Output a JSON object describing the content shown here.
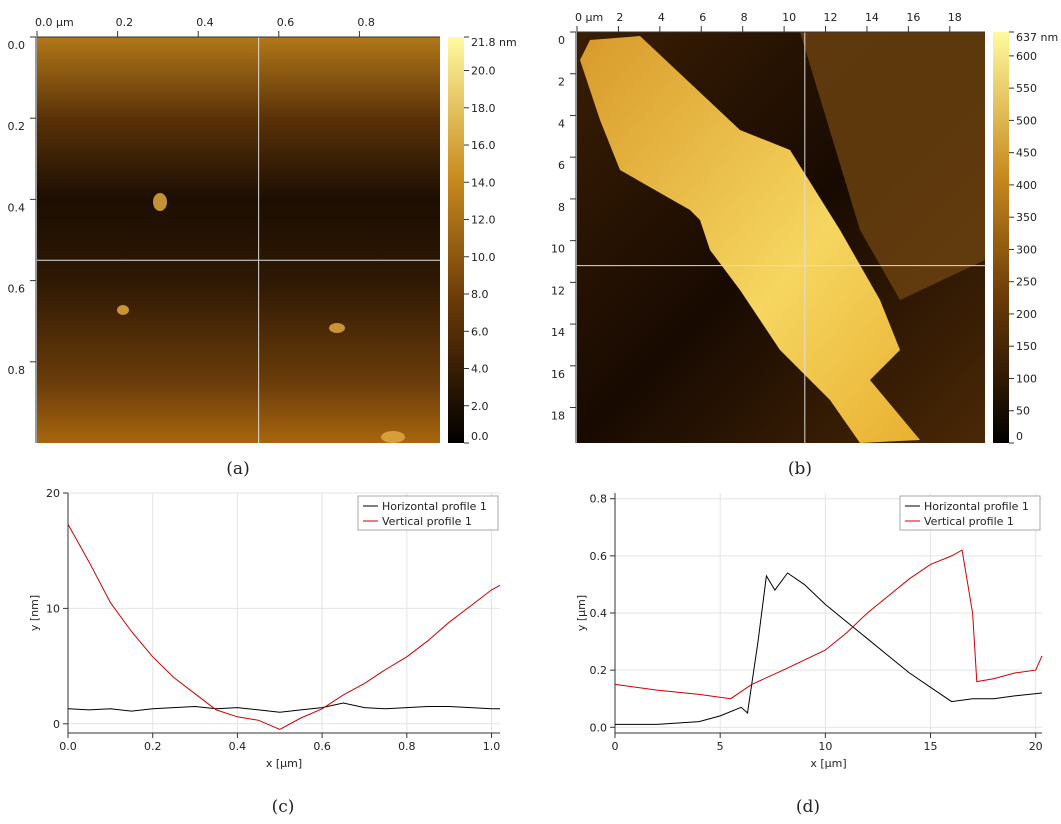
{
  "chart_data": [
    {
      "type": "heatmap",
      "caption": "(a)",
      "xlim": [
        0,
        1
      ],
      "xticks": [
        {
          "value": 0,
          "label": "0.0 µm"
        },
        0.2,
        0.4,
        0.6,
        0.8
      ],
      "ylim": [
        0,
        1
      ],
      "yticks": [
        {
          "value": 0,
          "label": "0.0"
        },
        0.2,
        0.4,
        0.6,
        0.8
      ],
      "crosshair": {
        "x": 0.55,
        "y": 0.55
      },
      "colorbar": {
        "lim": [
          0,
          21.8
        ],
        "ticks": [
          {
            "value": 21.8,
            "label": "21.8 nm"
          },
          {
            "value": 20,
            "label": "20.0"
          },
          {
            "value": 18,
            "label": "18.0"
          },
          {
            "value": 16,
            "label": "16.0"
          },
          {
            "value": 14,
            "label": "14.0"
          },
          {
            "value": 12,
            "label": "12.0"
          },
          {
            "value": 10,
            "label": "10.0"
          },
          {
            "value": 8,
            "label": "8.0"
          },
          {
            "value": 6,
            "label": "6.0"
          },
          {
            "value": 4,
            "label": "4.0"
          },
          {
            "value": 2,
            "label": "2.0"
          },
          {
            "value": 0,
            "label": "0.0"
          }
        ]
      }
    },
    {
      "type": "heatmap",
      "caption": "(b)",
      "xlim": [
        0,
        19.7
      ],
      "xticks": [
        {
          "value": 0,
          "label": "0 µm"
        },
        2,
        4,
        6,
        8,
        10,
        12,
        14,
        16,
        18
      ],
      "ylim": [
        0,
        19.7
      ],
      "yticks": [
        0,
        2,
        4,
        6,
        8,
        10,
        12,
        14,
        16,
        18
      ],
      "crosshair": {
        "x": 11,
        "y": 11.2
      },
      "colorbar": {
        "lim": [
          0,
          637
        ],
        "ticks": [
          {
            "value": 637,
            "label": "637 nm"
          },
          600,
          550,
          500,
          450,
          400,
          350,
          300,
          250,
          200,
          150,
          100,
          50,
          0
        ]
      }
    },
    {
      "type": "line",
      "caption": "(c)",
      "xlabel": "x [µm]",
      "ylabel": "y [nm]",
      "grid": true,
      "legend": "top-right",
      "xlim": [
        0,
        1.02
      ],
      "xticks": [
        {
          "value": 0,
          "label": "0.0"
        },
        0.2,
        0.4,
        0.6,
        0.8,
        {
          "value": 1,
          "label": "1.0"
        }
      ],
      "ylim": [
        -0.8,
        20
      ],
      "yticks": [
        0,
        10,
        20
      ],
      "series": [
        {
          "name": "Horizontal profile 1",
          "color": "#000000",
          "x": [
            0,
            0.05,
            0.1,
            0.15,
            0.2,
            0.25,
            0.3,
            0.35,
            0.4,
            0.45,
            0.5,
            0.55,
            0.6,
            0.65,
            0.7,
            0.75,
            0.8,
            0.85,
            0.9,
            0.95,
            1.0,
            1.02
          ],
          "values": [
            1.3,
            1.2,
            1.3,
            1.1,
            1.3,
            1.4,
            1.5,
            1.3,
            1.4,
            1.2,
            1.0,
            1.2,
            1.4,
            1.8,
            1.4,
            1.3,
            1.4,
            1.5,
            1.5,
            1.4,
            1.3,
            1.3
          ]
        },
        {
          "name": "Vertical profile 1",
          "color": "#cc0000",
          "x": [
            0,
            0.05,
            0.1,
            0.15,
            0.2,
            0.25,
            0.3,
            0.35,
            0.4,
            0.45,
            0.5,
            0.55,
            0.6,
            0.65,
            0.7,
            0.75,
            0.8,
            0.85,
            0.9,
            0.95,
            1.0,
            1.02
          ],
          "values": [
            17.3,
            14,
            10.5,
            8,
            5.8,
            4,
            2.6,
            1.2,
            0.6,
            0.3,
            -0.5,
            0.5,
            1.3,
            2.5,
            3.5,
            4.7,
            5.8,
            7.2,
            8.8,
            10.2,
            11.6,
            12
          ]
        }
      ]
    },
    {
      "type": "line",
      "caption": "(d)",
      "xlabel": "x [µm]",
      "ylabel": "y [µm]",
      "grid": true,
      "legend": "top-right",
      "xlim": [
        0,
        20.3
      ],
      "xticks": [
        0,
        5,
        10,
        15,
        20
      ],
      "ylim": [
        -0.02,
        0.82
      ],
      "yticks": [
        {
          "value": 0,
          "label": "0.0"
        },
        0.2,
        0.4,
        0.6,
        0.8
      ],
      "series": [
        {
          "name": "Horizontal profile 1",
          "color": "#000000",
          "x": [
            0,
            2,
            4,
            5,
            6,
            6.3,
            6.8,
            7.2,
            7.6,
            8.2,
            9,
            10,
            11,
            12,
            13,
            14,
            15,
            16,
            17,
            18,
            19,
            20.3
          ],
          "values": [
            0.01,
            0.01,
            0.02,
            0.04,
            0.07,
            0.05,
            0.3,
            0.53,
            0.48,
            0.54,
            0.5,
            0.43,
            0.37,
            0.31,
            0.25,
            0.19,
            0.14,
            0.09,
            0.1,
            0.1,
            0.11,
            0.12
          ]
        },
        {
          "name": "Vertical profile 1",
          "color": "#cc0000",
          "x": [
            0,
            2,
            4,
            5.5,
            6.5,
            8,
            10,
            11,
            12,
            13,
            14,
            15,
            16,
            16.5,
            17,
            17.2,
            18,
            19,
            20,
            20.3
          ],
          "values": [
            0.15,
            0.13,
            0.115,
            0.1,
            0.15,
            0.2,
            0.27,
            0.33,
            0.4,
            0.46,
            0.52,
            0.57,
            0.6,
            0.62,
            0.4,
            0.16,
            0.17,
            0.19,
            0.2,
            0.25
          ]
        }
      ]
    }
  ]
}
